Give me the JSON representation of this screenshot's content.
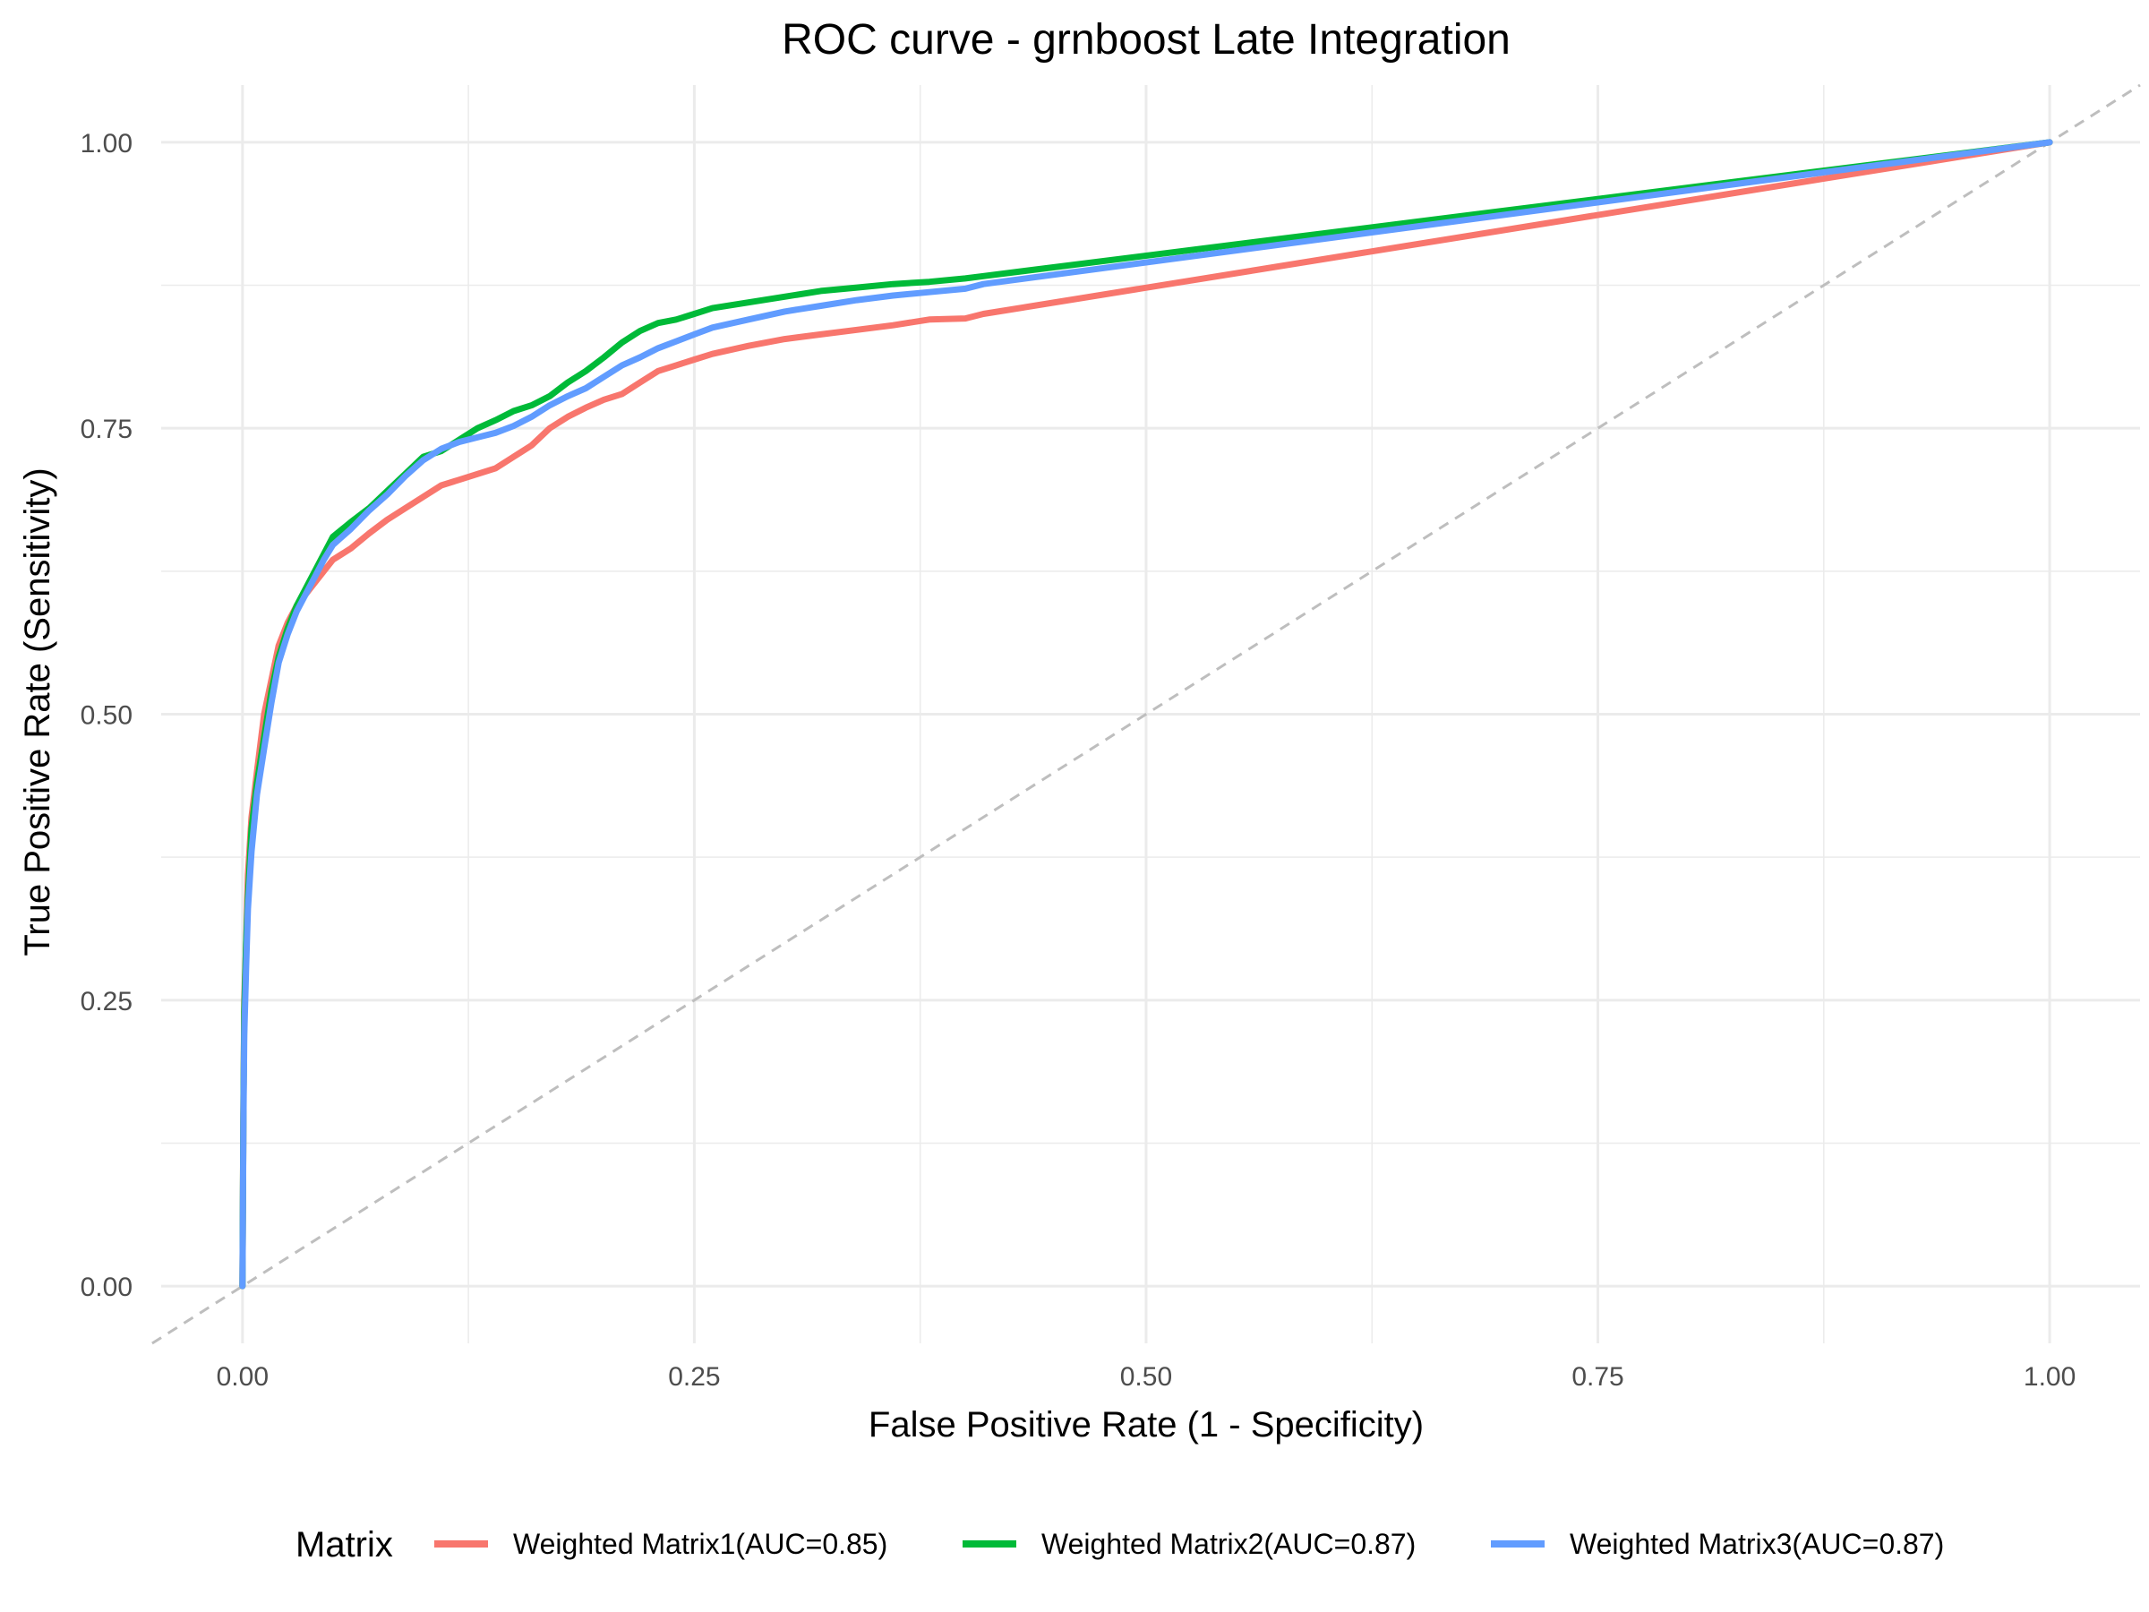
{
  "chart_data": {
    "type": "line",
    "title": "ROC curve - grnboost Late Integration",
    "xlabel": "False Positive Rate (1 - Specificity)",
    "ylabel": "True Positive Rate (Sensitivity)",
    "xlim": [
      -0.045,
      1.05
    ],
    "ylim": [
      -0.05,
      1.05
    ],
    "x_ticks": [
      0,
      0.25,
      0.5,
      0.75,
      1
    ],
    "x_tick_labels": [
      "0.00",
      "0.25",
      "0.50",
      "0.75",
      "1.00"
    ],
    "y_ticks": [
      0,
      0.25,
      0.5,
      0.75,
      1
    ],
    "y_tick_labels": [
      "0.00",
      "0.25",
      "0.50",
      "0.75",
      "1.00"
    ],
    "grid": true,
    "reference_line": {
      "x": [
        -0.05,
        1.05
      ],
      "y": [
        -0.05,
        1.05
      ],
      "color": "#bebebe",
      "style": "dashed"
    },
    "legend": {
      "title": "Matrix",
      "position": "bottom"
    },
    "series": [
      {
        "name": "Weighted Matrix1(AUC=0.85)",
        "color": "#F8766D",
        "x": [
          0,
          0.0005,
          0.001,
          0.002,
          0.003,
          0.005,
          0.008,
          0.012,
          0.016,
          0.02,
          0.025,
          0.03,
          0.035,
          0.04,
          0.045,
          0.05,
          0.06,
          0.07,
          0.08,
          0.09,
          0.1,
          0.11,
          0.12,
          0.13,
          0.14,
          0.15,
          0.16,
          0.17,
          0.18,
          0.19,
          0.2,
          0.21,
          0.22,
          0.23,
          0.24,
          0.25,
          0.26,
          0.28,
          0.3,
          0.32,
          0.34,
          0.36,
          0.38,
          0.4,
          0.41,
          1
        ],
        "y": [
          0,
          0.15,
          0.25,
          0.3,
          0.36,
          0.41,
          0.45,
          0.5,
          0.53,
          0.56,
          0.58,
          0.595,
          0.605,
          0.615,
          0.625,
          0.635,
          0.645,
          0.658,
          0.67,
          0.68,
          0.69,
          0.7,
          0.705,
          0.71,
          0.715,
          0.725,
          0.735,
          0.75,
          0.76,
          0.768,
          0.775,
          0.78,
          0.79,
          0.8,
          0.805,
          0.81,
          0.815,
          0.822,
          0.828,
          0.832,
          0.836,
          0.84,
          0.845,
          0.846,
          0.85,
          1
        ]
      },
      {
        "name": "Weighted Matrix2(AUC=0.87)",
        "color": "#00BA38",
        "x": [
          0,
          0.0005,
          0.001,
          0.002,
          0.003,
          0.005,
          0.008,
          0.012,
          0.016,
          0.02,
          0.025,
          0.03,
          0.035,
          0.04,
          0.045,
          0.05,
          0.06,
          0.07,
          0.08,
          0.09,
          0.1,
          0.11,
          0.12,
          0.13,
          0.14,
          0.15,
          0.16,
          0.17,
          0.18,
          0.19,
          0.2,
          0.21,
          0.22,
          0.23,
          0.24,
          0.25,
          0.26,
          0.28,
          0.3,
          0.32,
          0.34,
          0.36,
          0.38,
          0.4,
          0.41,
          1
        ],
        "y": [
          0,
          0.15,
          0.24,
          0.3,
          0.34,
          0.4,
          0.44,
          0.48,
          0.52,
          0.55,
          0.575,
          0.595,
          0.61,
          0.625,
          0.64,
          0.655,
          0.668,
          0.68,
          0.695,
          0.71,
          0.725,
          0.73,
          0.74,
          0.75,
          0.757,
          0.765,
          0.77,
          0.778,
          0.79,
          0.8,
          0.812,
          0.825,
          0.835,
          0.842,
          0.845,
          0.85,
          0.855,
          0.86,
          0.865,
          0.87,
          0.873,
          0.876,
          0.878,
          0.881,
          0.883,
          1
        ]
      },
      {
        "name": "Weighted Matrix3(AUC=0.87)",
        "color": "#619CFF",
        "x": [
          0,
          0.0005,
          0.001,
          0.002,
          0.003,
          0.005,
          0.008,
          0.012,
          0.016,
          0.02,
          0.025,
          0.03,
          0.035,
          0.04,
          0.045,
          0.05,
          0.06,
          0.07,
          0.08,
          0.09,
          0.1,
          0.11,
          0.12,
          0.13,
          0.14,
          0.15,
          0.16,
          0.17,
          0.18,
          0.19,
          0.2,
          0.21,
          0.22,
          0.23,
          0.24,
          0.25,
          0.26,
          0.28,
          0.3,
          0.32,
          0.34,
          0.36,
          0.38,
          0.4,
          0.41,
          1
        ],
        "y": [
          0,
          0.14,
          0.22,
          0.28,
          0.33,
          0.38,
          0.43,
          0.47,
          0.51,
          0.545,
          0.57,
          0.59,
          0.605,
          0.62,
          0.635,
          0.648,
          0.662,
          0.678,
          0.692,
          0.708,
          0.722,
          0.732,
          0.738,
          0.742,
          0.746,
          0.752,
          0.76,
          0.77,
          0.778,
          0.785,
          0.795,
          0.805,
          0.812,
          0.82,
          0.826,
          0.832,
          0.838,
          0.845,
          0.852,
          0.857,
          0.862,
          0.866,
          0.869,
          0.872,
          0.876,
          1
        ]
      }
    ]
  }
}
